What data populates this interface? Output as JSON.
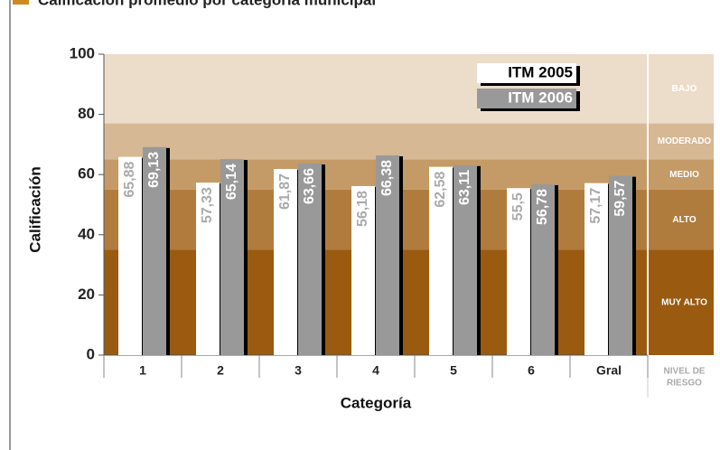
{
  "chart_data": {
    "type": "bar",
    "title": "Calificación promedio por categoría municipal",
    "x_label": "Categoría",
    "y_label": "Calificación",
    "categories": [
      "1",
      "2",
      "3",
      "4",
      "5",
      "6",
      "Gral"
    ],
    "series": [
      {
        "name": "ITM 2005",
        "color": "#ffffff",
        "values": [
          65.88,
          57.33,
          61.87,
          56.18,
          62.58,
          55.5,
          57.17
        ],
        "value_labels": [
          "65,88",
          "57,33",
          "61,87",
          "56,18",
          "62,58",
          "55,5",
          "57,17"
        ]
      },
      {
        "name": "ITM 2006",
        "color": "#999999",
        "values": [
          69.13,
          65.14,
          63.66,
          66.38,
          63.11,
          56.78,
          59.57
        ],
        "value_labels": [
          "69,13",
          "65,14",
          "63,66",
          "66,38",
          "63,11",
          "56,78",
          "59,57"
        ]
      }
    ],
    "ylim": [
      0,
      100
    ],
    "yticks": [
      0,
      20,
      40,
      60,
      80,
      100
    ],
    "risk_axis_label": [
      "NIVEL DE",
      "RIESGO"
    ],
    "risk_levels": [
      {
        "label": "BAJO",
        "from": 77,
        "to": 100,
        "color": "#ecdcca"
      },
      {
        "label": "MODERADO",
        "from": 65,
        "to": 77,
        "color": "#d6b894"
      },
      {
        "label": "MEDIO",
        "from": 55,
        "to": 65,
        "color": "#c49a66"
      },
      {
        "label": "ALTO",
        "from": 35,
        "to": 55,
        "color": "#b07c3e"
      },
      {
        "label": "MUY ALTO",
        "from": 0,
        "to": 35,
        "color": "#9a5a10"
      }
    ]
  }
}
